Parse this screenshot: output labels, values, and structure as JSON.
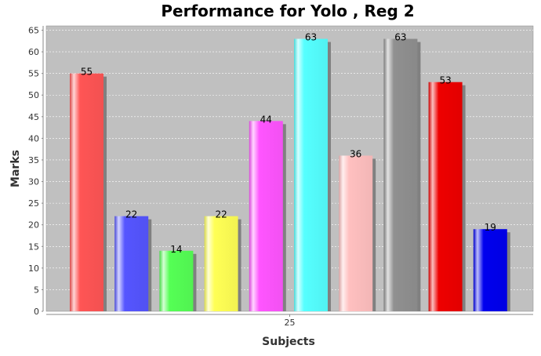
{
  "chart_data": {
    "type": "bar",
    "title": "Performance for Yolo , Reg 2",
    "xlabel": "Subjects",
    "ylabel": "Marks",
    "categories": [
      "25"
    ],
    "ylim": [
      0,
      66
    ],
    "yticks": [
      0,
      5,
      10,
      15,
      20,
      25,
      30,
      35,
      40,
      45,
      50,
      55,
      60,
      65
    ],
    "grid": true,
    "legend": "none",
    "series": [
      {
        "values": [
          55
        ],
        "color": "#ff5555"
      },
      {
        "values": [
          22
        ],
        "color": "#5555ff"
      },
      {
        "values": [
          14
        ],
        "color": "#55ff55"
      },
      {
        "values": [
          22
        ],
        "color": "#ffff55"
      },
      {
        "values": [
          44
        ],
        "color": "#ff55ff"
      },
      {
        "values": [
          63
        ],
        "color": "#55ffff"
      },
      {
        "values": [
          36
        ],
        "color": "#ffc0c0"
      },
      {
        "values": [
          63
        ],
        "color": "#909090"
      },
      {
        "values": [
          53
        ],
        "color": "#ee0000"
      },
      {
        "values": [
          19
        ],
        "color": "#0000ee"
      }
    ],
    "plot_background": "#c0c0c0"
  }
}
